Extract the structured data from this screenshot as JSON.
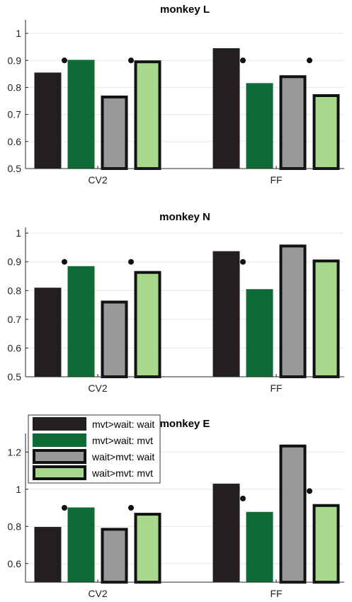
{
  "chart_data": [
    {
      "type": "bar",
      "title": "monkey L",
      "categories": [
        "CV2",
        "FF"
      ],
      "ylim": [
        0.5,
        1.05
      ],
      "yticks": [
        0.5,
        0.6,
        0.7,
        0.8,
        0.9,
        1
      ],
      "ytick_labels": [
        "0.5",
        "0.6",
        "0.7",
        "0.8",
        "0.9",
        "1"
      ],
      "grid": true,
      "series": [
        {
          "name": "mvt>wait: wait",
          "values": [
            0.855,
            0.945
          ]
        },
        {
          "name": "mvt>wait: mvt",
          "values": [
            0.902,
            0.816
          ]
        },
        {
          "name": "wait>mvt: wait",
          "values": [
            0.77,
            0.845
          ]
        },
        {
          "name": "wait>mvt: mvt",
          "values": [
            0.9,
            0.775
          ]
        }
      ],
      "significance_markers": [
        {
          "category": "CV2",
          "between": "mvt>wait",
          "y": 0.9
        },
        {
          "category": "CV2",
          "between": "wait>mvt",
          "y": 0.9
        },
        {
          "category": "FF",
          "between": "mvt>wait",
          "y": 0.9
        },
        {
          "category": "FF",
          "between": "wait>mvt",
          "y": 0.9
        }
      ]
    },
    {
      "type": "bar",
      "title": "monkey N",
      "categories": [
        "CV2",
        "FF"
      ],
      "ylim": [
        0.5,
        1.02
      ],
      "yticks": [
        0.5,
        0.6,
        0.7,
        0.8,
        0.9,
        1
      ],
      "ytick_labels": [
        "0.5",
        "0.6",
        "0.7",
        "0.8",
        "0.9",
        "1"
      ],
      "grid": true,
      "series": [
        {
          "name": "mvt>wait: wait",
          "values": [
            0.81,
            0.937
          ]
        },
        {
          "name": "mvt>wait: mvt",
          "values": [
            0.885,
            0.805
          ]
        },
        {
          "name": "wait>mvt: wait",
          "values": [
            0.765,
            0.96
          ]
        },
        {
          "name": "wait>mvt: mvt",
          "values": [
            0.868,
            0.908
          ]
        }
      ],
      "significance_markers": [
        {
          "category": "CV2",
          "between": "mvt>wait",
          "y": 0.9
        },
        {
          "category": "CV2",
          "between": "wait>mvt",
          "y": 0.9
        },
        {
          "category": "FF",
          "between": "mvt>wait",
          "y": 0.9
        }
      ]
    },
    {
      "type": "bar",
      "title": "monkey E",
      "categories": [
        "CV2",
        "FF"
      ],
      "ylim": [
        0.5,
        1.3
      ],
      "yticks": [
        0.6,
        0.8,
        1,
        1.2
      ],
      "ytick_labels": [
        "0.6",
        "0.8",
        "1",
        "1.2"
      ],
      "grid": true,
      "legend_position": "top-left",
      "series": [
        {
          "name": "mvt>wait: wait",
          "values": [
            0.797,
            1.03
          ]
        },
        {
          "name": "mvt>wait: mvt",
          "values": [
            0.902,
            0.878
          ]
        },
        {
          "name": "wait>mvt: wait",
          "values": [
            0.792,
            1.24
          ]
        },
        {
          "name": "wait>mvt: mvt",
          "values": [
            0.873,
            0.92
          ]
        }
      ],
      "significance_markers": [
        {
          "category": "CV2",
          "between": "mvt>wait",
          "y": 0.9
        },
        {
          "category": "CV2",
          "between": "wait>mvt",
          "y": 0.9
        },
        {
          "category": "FF",
          "between": "mvt>wait",
          "y": 0.95
        },
        {
          "category": "FF",
          "between": "wait>mvt",
          "y": 0.99
        }
      ]
    }
  ],
  "legend": {
    "items": [
      {
        "label": "mvt>wait: wait",
        "color": "#231f20",
        "outlined": false
      },
      {
        "label": "mvt>wait: mvt",
        "color": "#0f6b36",
        "outlined": false
      },
      {
        "label": "wait>mvt: wait",
        "color": "#98999b",
        "outlined": true
      },
      {
        "label": "wait>mvt: mvt",
        "color": "#a8d88c",
        "outlined": true
      }
    ]
  },
  "colors": {
    "mvt_wait_wait": "#231f20",
    "mvt_wait_mvt": "#0f6b36",
    "wait_mvt_wait": "#98999b",
    "wait_mvt_mvt": "#a8d88c",
    "outline": "#111111"
  }
}
